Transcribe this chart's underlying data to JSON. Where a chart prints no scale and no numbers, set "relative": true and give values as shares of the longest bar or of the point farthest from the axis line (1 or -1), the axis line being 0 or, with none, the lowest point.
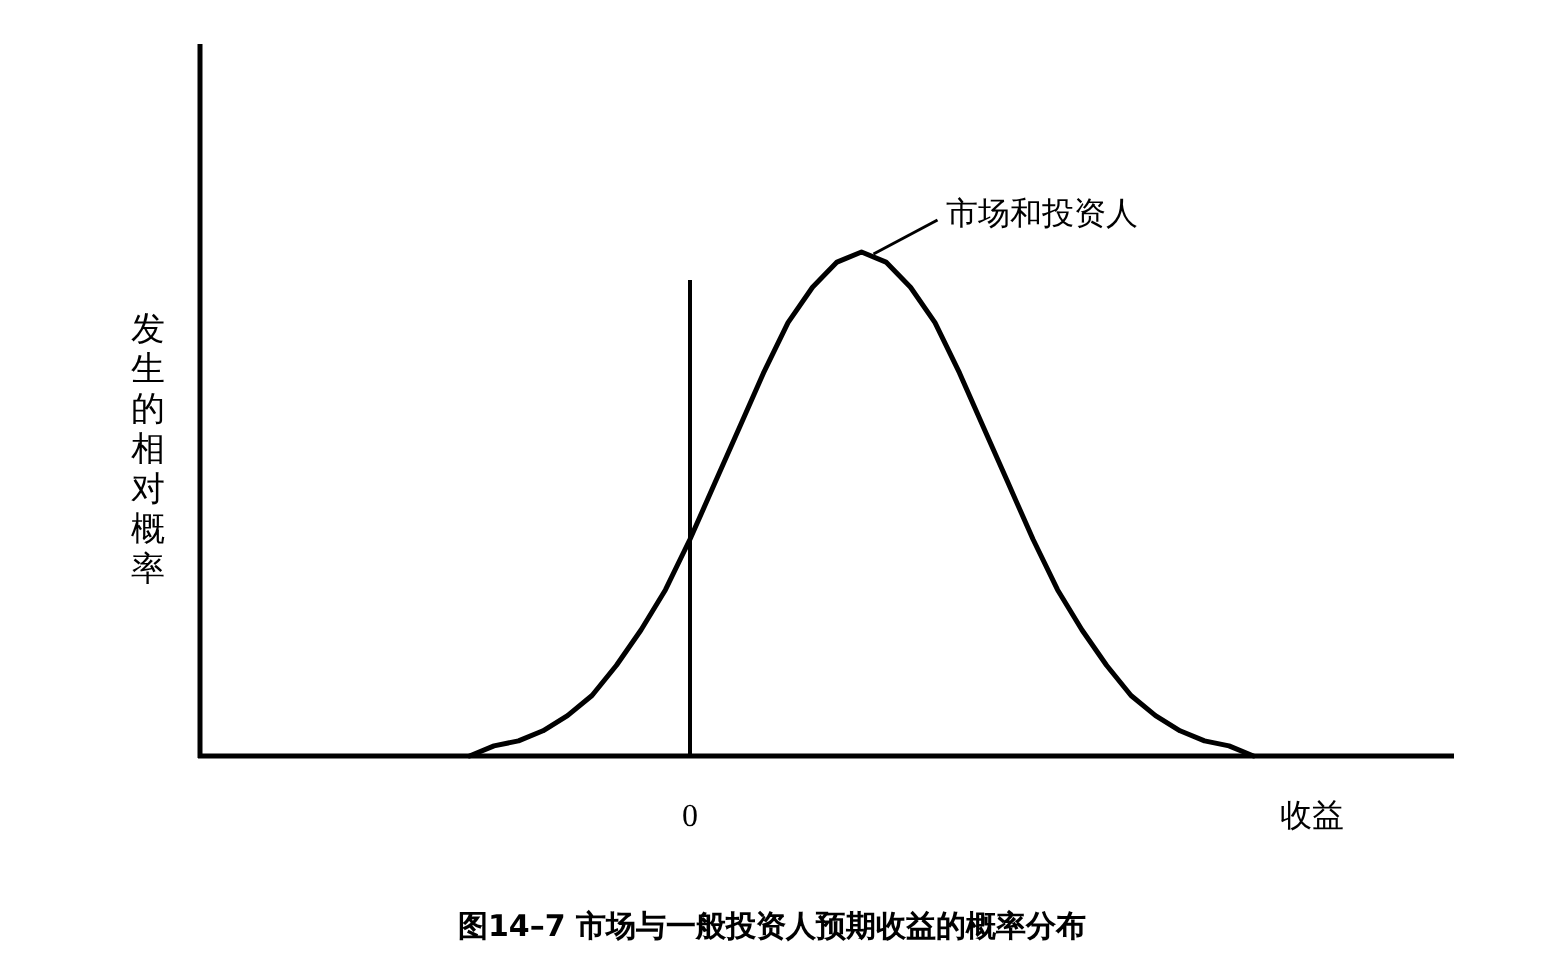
{
  "chart_data": {
    "type": "line",
    "relative": true,
    "title": "图14–7 市场与一般投资人预期收益的概率分布",
    "xlabel": "收益",
    "ylabel": "发生的相对概率",
    "categories": [
      null,
      null,
      null,
      null,
      null,
      null,
      null,
      null,
      null,
      null,
      null,
      null,
      null,
      null,
      null,
      null,
      null,
      null,
      null,
      null,
      null,
      null,
      null,
      null,
      null,
      null,
      null,
      null,
      null,
      null,
      null,
      null,
      null,
      null,
      null,
      null,
      null,
      null,
      null,
      null,
      null,
      null,
      null,
      null,
      null,
      null,
      null,
      null,
      null,
      null,
      null,
      null
    ],
    "series": [
      {
        "name": "市场和投资人",
        "color": "#000000",
        "values": [
          null,
          null,
          null,
          null,
          null,
          null,
          null,
          null,
          null,
          null,
          null,
          0,
          0.02,
          0.03,
          0.05,
          0.08,
          0.12,
          0.18,
          0.25,
          0.33,
          0.43,
          0.54,
          0.65,
          0.76,
          0.86,
          0.93,
          0.98,
          1,
          0.98,
          0.93,
          0.86,
          0.76,
          0.65,
          0.54,
          0.43,
          0.33,
          0.25,
          0.18,
          0.12,
          0.08,
          0.05,
          0.03,
          0.02,
          0,
          null,
          null,
          null,
          null,
          null,
          null,
          null,
          null
        ]
      }
    ],
    "annotations": [
      "0"
    ]
  }
}
